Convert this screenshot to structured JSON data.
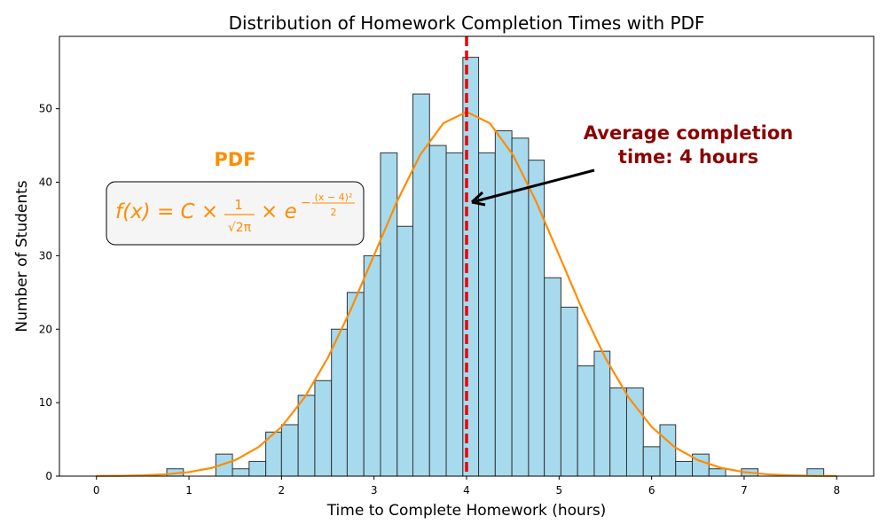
{
  "chart_data": {
    "type": "histogram",
    "title": "Distribution of Homework Completion Times with PDF",
    "x_label": "Time to Complete Homework (hours)",
    "y_label": "Number of Students",
    "bins": [
      0.76,
      0.94,
      1.12,
      1.29,
      1.47,
      1.65,
      1.83,
      2.0,
      2.18,
      2.36,
      2.54,
      2.71,
      2.89,
      3.07,
      3.25,
      3.42,
      3.6,
      3.78,
      3.96,
      4.13,
      4.31,
      4.49,
      4.67,
      4.84,
      5.02,
      5.2,
      5.38,
      5.55,
      5.73,
      5.91,
      6.09,
      6.26,
      6.44,
      6.62,
      6.8,
      6.97,
      7.15,
      7.33,
      7.51,
      7.68,
      7.86
    ],
    "counts": [
      1,
      0,
      0,
      3,
      1,
      2,
      6,
      7,
      11,
      13,
      20,
      25,
      30,
      44,
      34,
      52,
      45,
      44,
      57,
      44,
      47,
      46,
      43,
      27,
      23,
      15,
      17,
      12,
      12,
      4,
      7,
      2,
      3,
      1,
      0,
      1,
      0,
      0,
      0,
      1
    ],
    "color": "#a8daee",
    "edge_color": "#333333",
    "pdf": {
      "color": "#ff8c00",
      "x": [
        0,
        0.25,
        0.5,
        0.75,
        1,
        1.25,
        1.5,
        1.75,
        2,
        2.25,
        2.5,
        2.75,
        3,
        3.25,
        3.5,
        3.75,
        4,
        4.25,
        4.5,
        4.75,
        5,
        5.25,
        5.5,
        5.75,
        6,
        6.25,
        6.5,
        6.75,
        7,
        7.25,
        7.5,
        7.75,
        8
      ],
      "values": [
        0.02,
        0.04,
        0.11,
        0.25,
        0.55,
        1.13,
        2.18,
        3.94,
        6.71,
        10.72,
        16.09,
        22.69,
        30.07,
        37.42,
        43.75,
        48.04,
        49.57,
        48.04,
        43.75,
        37.42,
        30.07,
        22.69,
        16.09,
        10.72,
        6.71,
        3.94,
        2.18,
        1.13,
        0.55,
        0.25,
        0.11,
        0.04,
        0.02
      ]
    },
    "mean_line": {
      "value": 4,
      "color": "#ee0000"
    },
    "annotation": {
      "lines": [
        "Average completion",
        "time: 4 hours"
      ],
      "color": "#8b0000"
    },
    "pdf_label": "PDF",
    "formula": {
      "lhs": "f(x) = C ×",
      "num": "1",
      "den": "√2π",
      "mid": "× e",
      "sign": "−",
      "exp_num": "(x − 4)²",
      "exp_den": "2"
    },
    "xlim": [
      -0.4,
      8.4
    ],
    "ylim": [
      0,
      59.85
    ],
    "xticks": [
      0,
      1,
      2,
      3,
      4,
      5,
      6,
      7,
      8
    ],
    "yticks": [
      0,
      10,
      20,
      30,
      40,
      50
    ]
  }
}
